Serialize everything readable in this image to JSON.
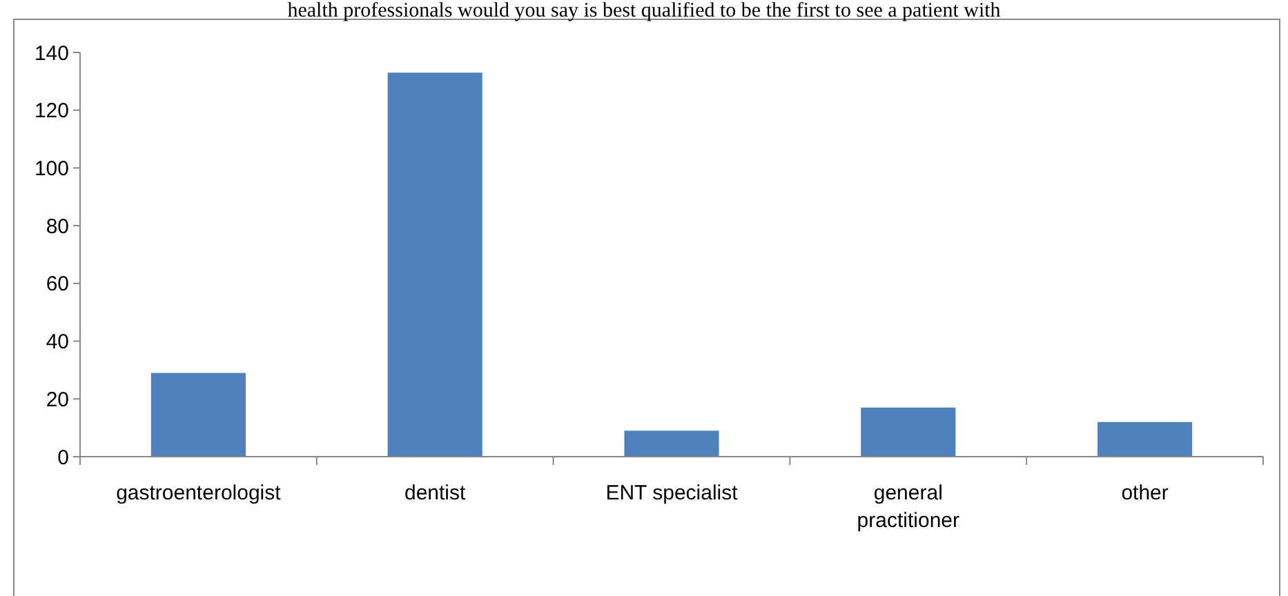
{
  "chart_data": {
    "type": "bar",
    "title": "health professionals would you say is best qualified to be the first to see a patient with",
    "categories": [
      "gastroenterologist",
      "dentist",
      "ENT specialist",
      "general practitioner",
      "other"
    ],
    "values": [
      29,
      133,
      9,
      17,
      12
    ],
    "color": "#4f81bd",
    "ylim": [
      0,
      140
    ],
    "yticks": [
      0,
      20,
      40,
      60,
      80,
      100,
      120,
      140
    ],
    "grid": false
  }
}
